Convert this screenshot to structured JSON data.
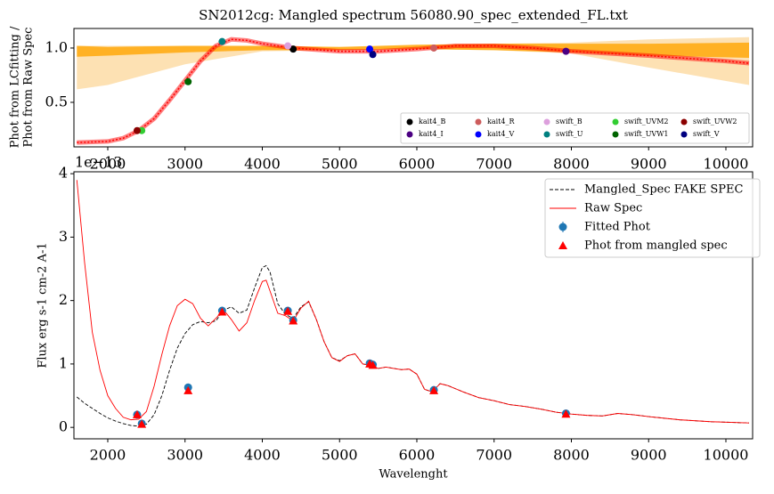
{
  "chart_data": [
    {
      "type": "line",
      "title": "SN2012cg: Mangled spectrum 56080.90_spec_extended_FL.txt",
      "ylabel": [
        "Phot from LCfitting /",
        "Phot from Raw Spec"
      ],
      "xlim": [
        1562,
        10346
      ],
      "ylim": [
        0.09,
        1.18
      ],
      "xticks": [
        2000,
        3000,
        4000,
        5000,
        6000,
        7000,
        8000,
        9000,
        10000
      ],
      "yticks": [
        0.5,
        {
          "value": 1.0,
          "label": "1.0"
        }
      ],
      "legend": "lower right",
      "series": [
        {
          "type": "band",
          "color": "#fdd9a0",
          "x": [
            1600,
            2000,
            3000,
            4000,
            5000,
            6000,
            7000,
            8000,
            9000,
            10300
          ],
          "lower": [
            0.62,
            0.66,
            0.85,
            0.97,
            0.98,
            0.99,
            0.98,
            0.95,
            0.82,
            0.66
          ],
          "upper": [
            1.02,
            1.02,
            1.02,
            1.02,
            1.01,
            1.02,
            1.04,
            1.05,
            1.08,
            1.1
          ]
        },
        {
          "type": "band",
          "color": "#ffa500",
          "x": [
            1600,
            2000,
            3000,
            4000,
            5000,
            6000,
            7000,
            8000,
            9000,
            10300
          ],
          "lower": [
            0.92,
            0.93,
            0.96,
            0.98,
            0.98,
            0.99,
            0.98,
            0.96,
            0.93,
            0.91
          ],
          "upper": [
            1.02,
            1.01,
            1.02,
            1.02,
            1.01,
            1.03,
            1.04,
            1.04,
            1.04,
            1.05
          ]
        },
        {
          "type": "line",
          "color": "#ff0000",
          "linestyle": "dotted",
          "x": [
            1600,
            2000,
            2200,
            2400,
            2600,
            2800,
            3000,
            3200,
            3400,
            3600,
            3800,
            4000,
            4400,
            5000,
            5500,
            6000,
            6500,
            7000,
            7500,
            8000,
            9000,
            10000,
            10300
          ],
          "values": [
            0.13,
            0.14,
            0.17,
            0.24,
            0.35,
            0.52,
            0.7,
            0.88,
            1.02,
            1.08,
            1.07,
            1.04,
            1.0,
            0.97,
            0.97,
            0.99,
            1.02,
            1.02,
            1.0,
            0.97,
            0.93,
            0.88,
            0.86
          ]
        },
        {
          "type": "scatter",
          "name": "kait4_B",
          "color": "#000000",
          "x": [
            4400
          ],
          "values": [
            0.99
          ]
        },
        {
          "type": "scatter",
          "name": "kait4_I",
          "color": "#4b0082",
          "x": [
            7930
          ],
          "values": [
            0.97
          ]
        },
        {
          "type": "scatter",
          "name": "kait4_R",
          "color": "#cd5c5c",
          "x": [
            6220
          ],
          "values": [
            1.0
          ]
        },
        {
          "type": "scatter",
          "name": "kait4_V",
          "color": "#0000ff",
          "x": [
            5390
          ],
          "values": [
            0.99
          ]
        },
        {
          "type": "scatter",
          "name": "swift_B",
          "color": "#dda0dd",
          "x": [
            4330
          ],
          "values": [
            1.02
          ]
        },
        {
          "type": "scatter",
          "name": "swift_U",
          "color": "#008080",
          "x": [
            3480
          ],
          "values": [
            1.06
          ]
        },
        {
          "type": "scatter",
          "name": "swift_UVM2",
          "color": "#32cd32",
          "x": [
            2440
          ],
          "values": [
            0.24
          ]
        },
        {
          "type": "scatter",
          "name": "swift_UVW1",
          "color": "#006400",
          "x": [
            3040
          ],
          "values": [
            0.69
          ]
        },
        {
          "type": "scatter",
          "name": "swift_UVW2",
          "color": "#8b0000",
          "x": [
            2380
          ],
          "values": [
            0.24
          ]
        },
        {
          "type": "scatter",
          "name": "swift_V",
          "color": "#000080",
          "x": [
            5430
          ],
          "values": [
            0.94
          ]
        }
      ]
    },
    {
      "type": "line",
      "xlabel": "Wavelenght",
      "ylabel": "Flux erg s-1 cm-2 A-1",
      "offset_label": "1e−13",
      "xlim": [
        1562,
        10346
      ],
      "ylim": [
        -0.18,
        4.03
      ],
      "xticks": [
        2000,
        3000,
        4000,
        5000,
        6000,
        7000,
        8000,
        9000,
        10000
      ],
      "yticks": [
        0,
        1,
        2,
        3,
        4
      ],
      "legend": "upper right",
      "series": [
        {
          "type": "line",
          "name": "Mangled_Spec FAKE SPEC",
          "color": "#000000",
          "linestyle": "dashed",
          "x": [
            1600,
            1700,
            1800,
            1900,
            2000,
            2100,
            2200,
            2300,
            2400,
            2500,
            2600,
            2700,
            2800,
            2900,
            3000,
            3100,
            3200,
            3300,
            3400,
            3500,
            3600,
            3700,
            3800,
            3900,
            4000,
            4050,
            4100,
            4200,
            4300,
            4400,
            4500,
            4600,
            4700,
            4800,
            4900,
            5000,
            5100,
            5200,
            5300,
            5400,
            5500,
            5600,
            5700,
            5800,
            5900,
            6000,
            6100,
            6200,
            6300,
            6400,
            6600,
            6800,
            7000,
            7200,
            7400,
            7600,
            7800,
            8000,
            8200,
            8400,
            8600,
            8800,
            9000,
            9400,
            9800,
            10300
          ],
          "values": [
            0.48,
            0.38,
            0.3,
            0.22,
            0.15,
            0.1,
            0.06,
            0.03,
            0.02,
            0.05,
            0.2,
            0.5,
            0.9,
            1.25,
            1.48,
            1.62,
            1.67,
            1.65,
            1.68,
            1.85,
            1.9,
            1.8,
            1.85,
            2.2,
            2.52,
            2.55,
            2.45,
            1.95,
            1.78,
            1.72,
            1.9,
            1.98,
            1.7,
            1.35,
            1.1,
            1.05,
            1.13,
            1.16,
            1.0,
            0.98,
            0.93,
            0.95,
            0.93,
            0.91,
            0.92,
            0.84,
            0.6,
            0.56,
            0.69,
            0.66,
            0.56,
            0.47,
            0.42,
            0.36,
            0.33,
            0.29,
            0.24,
            0.21,
            0.19,
            0.18,
            0.22,
            0.2,
            0.17,
            0.12,
            0.09,
            0.07
          ]
        },
        {
          "type": "line",
          "name": "Raw Spec",
          "color": "#ff0000",
          "linestyle": "solid",
          "x": [
            1600,
            1700,
            1800,
            1900,
            2000,
            2100,
            2200,
            2300,
            2400,
            2500,
            2600,
            2700,
            2800,
            2900,
            3000,
            3100,
            3200,
            3300,
            3400,
            3500,
            3600,
            3700,
            3800,
            3900,
            4000,
            4050,
            4100,
            4200,
            4300,
            4400,
            4500,
            4600,
            4700,
            4800,
            4900,
            5000,
            5100,
            5200,
            5300,
            5400,
            5500,
            5600,
            5700,
            5800,
            5900,
            6000,
            6100,
            6200,
            6300,
            6400,
            6600,
            6800,
            7000,
            7200,
            7400,
            7600,
            7800,
            8000,
            8200,
            8400,
            8600,
            8800,
            9000,
            9400,
            9800,
            10300
          ],
          "values": [
            3.9,
            2.6,
            1.5,
            0.9,
            0.5,
            0.3,
            0.16,
            0.12,
            0.13,
            0.25,
            0.65,
            1.15,
            1.6,
            1.92,
            2.02,
            1.95,
            1.72,
            1.6,
            1.72,
            1.85,
            1.7,
            1.52,
            1.65,
            2.0,
            2.3,
            2.32,
            2.15,
            1.8,
            1.76,
            1.68,
            1.88,
            1.99,
            1.7,
            1.35,
            1.1,
            1.04,
            1.13,
            1.16,
            1.0,
            0.98,
            0.93,
            0.95,
            0.93,
            0.91,
            0.92,
            0.84,
            0.6,
            0.56,
            0.69,
            0.66,
            0.56,
            0.47,
            0.42,
            0.36,
            0.33,
            0.29,
            0.24,
            0.21,
            0.19,
            0.18,
            0.22,
            0.2,
            0.17,
            0.12,
            0.09,
            0.07
          ]
        },
        {
          "type": "scatter",
          "name": "Fitted Phot",
          "color": "#1f77b4",
          "marker": "circle",
          "x": [
            2380,
            2440,
            3040,
            3480,
            4330,
            4400,
            5390,
            5430,
            6220,
            7930
          ],
          "values": [
            0.2,
            0.06,
            0.63,
            1.84,
            1.84,
            1.69,
            1.01,
            0.99,
            0.59,
            0.22
          ],
          "errors": [
            0.03,
            0.03,
            0.03,
            0.04,
            0.03,
            0.03,
            0.03,
            0.03,
            0.03,
            0.02
          ]
        },
        {
          "type": "scatter",
          "name": "Phot from mangled spec",
          "color": "#ff0000",
          "marker": "triangle",
          "x": [
            2380,
            2440,
            3040,
            3480,
            4330,
            4400,
            5390,
            5430,
            6220,
            7930
          ],
          "values": [
            0.2,
            0.05,
            0.58,
            1.82,
            1.83,
            1.68,
            1.0,
            0.98,
            0.58,
            0.21
          ]
        }
      ]
    }
  ]
}
